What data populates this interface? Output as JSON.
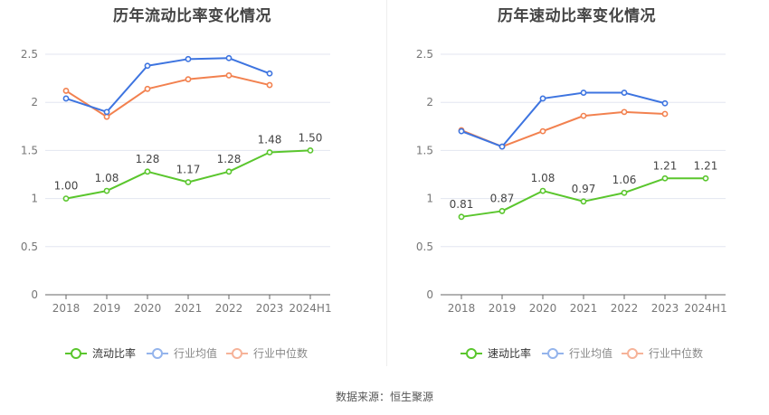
{
  "colors": {
    "primary": "#5ac62d",
    "industry_avg": "#3d74e0",
    "industry_median": "#f2814f",
    "legend_avg": "#94b4ec",
    "legend_median": "#f6b399",
    "grid": "#e3e6f0",
    "axis": "#666666",
    "label": "#555555"
  },
  "footer": {
    "source": "数据来源：恒生聚源"
  },
  "chart_data": [
    {
      "type": "line",
      "title": "历年流动比率变化情况",
      "categories": [
        "2018",
        "2019",
        "2020",
        "2021",
        "2022",
        "2023",
        "2024H1"
      ],
      "ylim": [
        0,
        2.5
      ],
      "yticks": [
        0,
        0.5,
        1,
        1.5,
        2,
        2.5
      ],
      "ytick_labels": [
        "0",
        "0.5",
        "1",
        "1.5",
        "2",
        "2.5"
      ],
      "grid": true,
      "legend_position": "bottom-center",
      "series": [
        {
          "name": "流动比率",
          "key": "primary",
          "values": [
            1.0,
            1.08,
            1.28,
            1.17,
            1.28,
            1.48,
            1.5
          ],
          "labels": [
            "1.00",
            "1.08",
            "1.28",
            "1.17",
            "1.28",
            "1.48",
            "1.50"
          ]
        },
        {
          "name": "行业均值",
          "key": "industry_avg",
          "values": [
            2.04,
            1.9,
            2.38,
            2.45,
            2.46,
            2.3,
            null
          ]
        },
        {
          "name": "行业中位数",
          "key": "industry_median",
          "values": [
            2.12,
            1.85,
            2.14,
            2.24,
            2.28,
            2.18,
            null
          ]
        }
      ]
    },
    {
      "type": "line",
      "title": "历年速动比率变化情况",
      "categories": [
        "2018",
        "2019",
        "2020",
        "2021",
        "2022",
        "2023",
        "2024H1"
      ],
      "ylim": [
        0,
        2.5
      ],
      "yticks": [
        0,
        0.5,
        1,
        1.5,
        2,
        2.5
      ],
      "ytick_labels": [
        "0",
        "0.5",
        "1",
        "1.5",
        "2",
        "2.5"
      ],
      "grid": true,
      "legend_position": "bottom-center",
      "series": [
        {
          "name": "速动比率",
          "key": "primary",
          "values": [
            0.81,
            0.87,
            1.08,
            0.97,
            1.06,
            1.21,
            1.21
          ],
          "labels": [
            "0.81",
            "0.87",
            "1.08",
            "0.97",
            "1.06",
            "1.21",
            "1.21"
          ]
        },
        {
          "name": "行业均值",
          "key": "industry_avg",
          "values": [
            1.7,
            1.54,
            2.04,
            2.1,
            2.1,
            1.99,
            null
          ]
        },
        {
          "name": "行业中位数",
          "key": "industry_median",
          "values": [
            1.71,
            1.54,
            1.7,
            1.86,
            1.9,
            1.88,
            null
          ]
        }
      ]
    }
  ]
}
